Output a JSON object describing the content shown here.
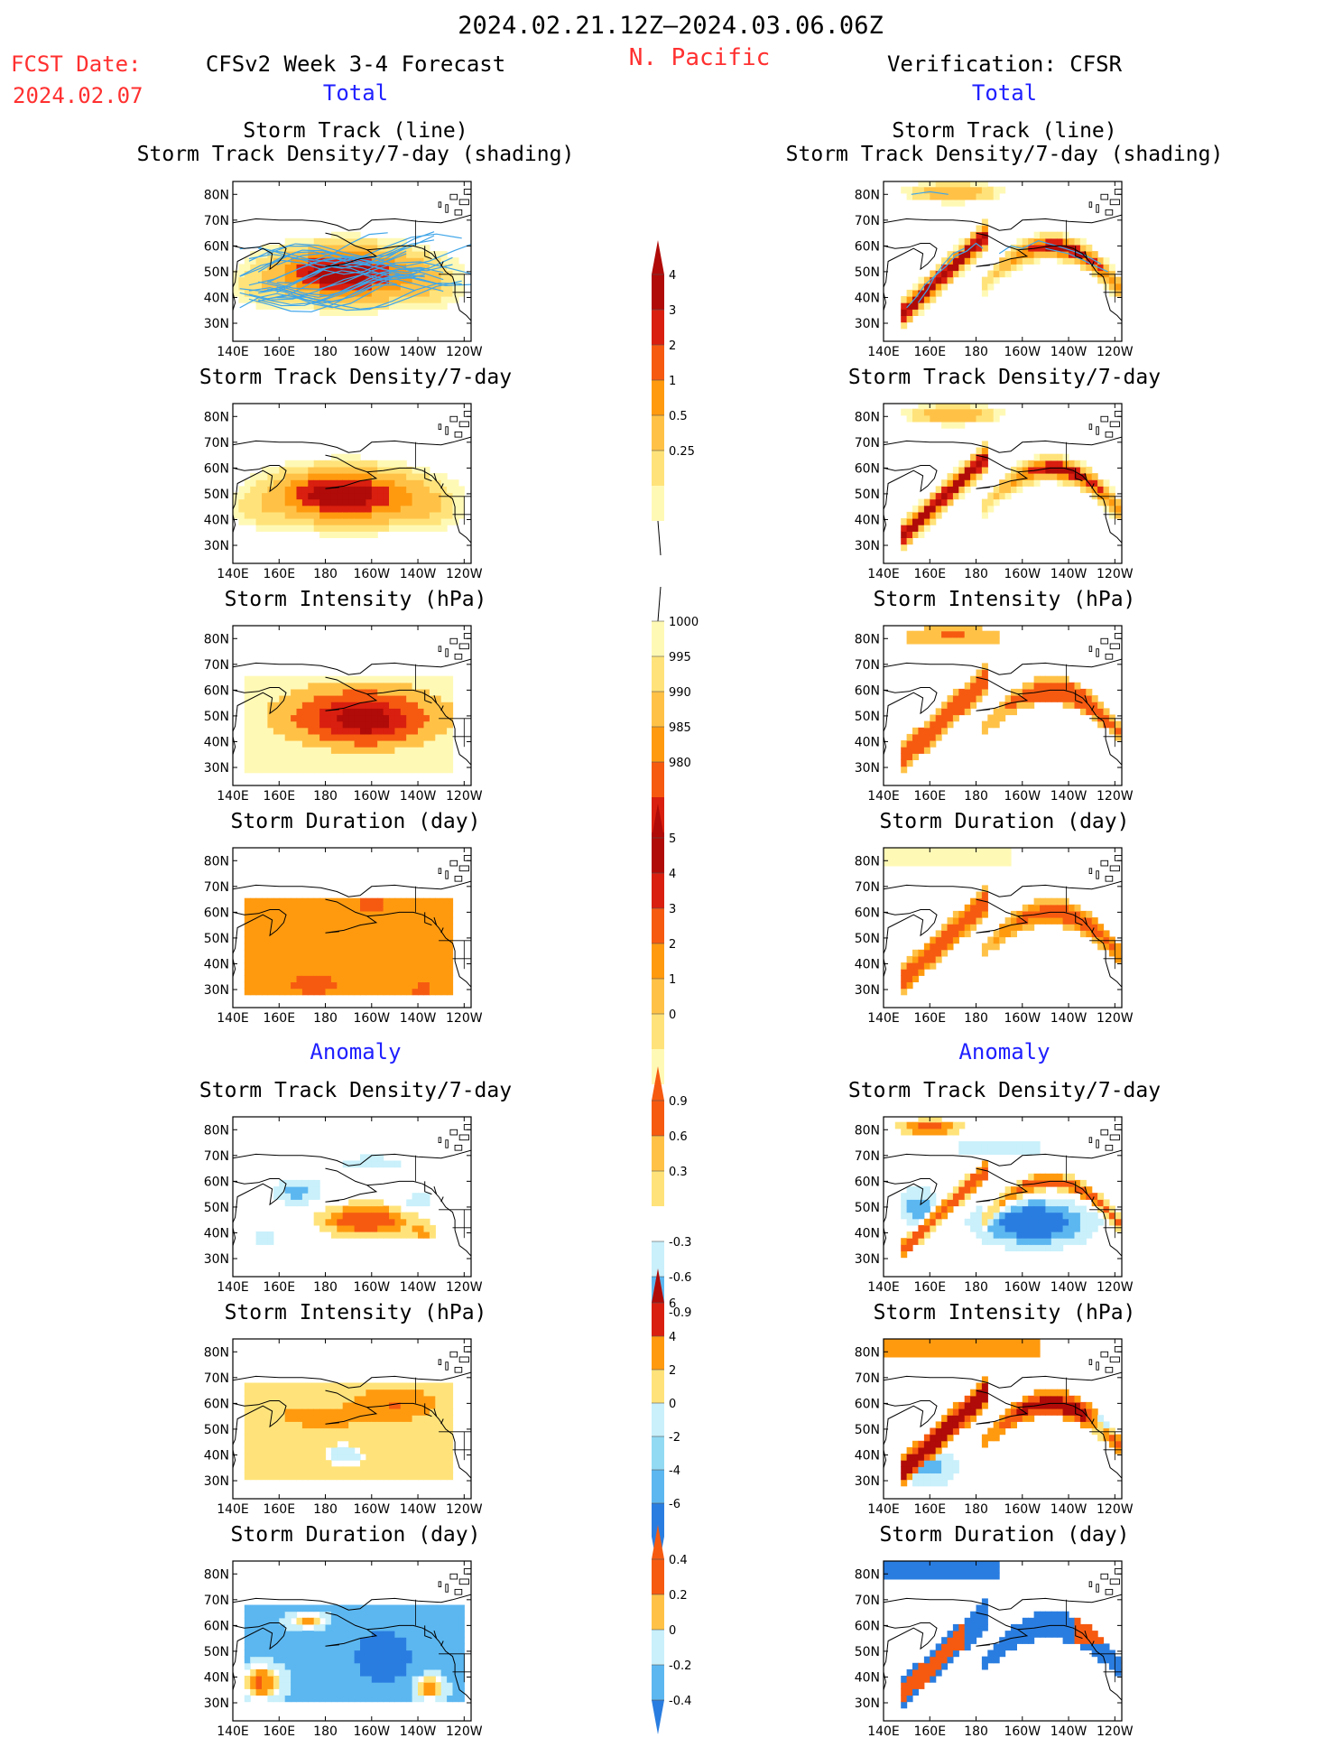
{
  "header": {
    "period": "2024.02.21.12Z–2024.03.06.06Z",
    "region": "N. Pacific",
    "fcst_label": "FCST Date:",
    "fcst_date": "2024.02.07",
    "model_title": "CFSv2 Week 3-4 Forecast",
    "verification_title": "Verification: CFSR",
    "total_label": "Total",
    "anomaly_label": "Anomaly"
  },
  "panel_titles": {
    "storm_track_line": "Storm Track (line)",
    "storm_track_shading": "Storm Track Density/7-day (shading)",
    "density": "Storm Track Density/7-day",
    "intensity": "Storm Intensity (hPa)",
    "duration": "Storm Duration (day)"
  },
  "axes": {
    "lat_labels": [
      "80N",
      "70N",
      "60N",
      "50N",
      "40N",
      "30N"
    ],
    "lon_labels": [
      "140E",
      "160E",
      "180",
      "160W",
      "140W",
      "120W"
    ]
  },
  "colorbars": {
    "density_total": [
      "0.25",
      "0.5",
      "1",
      "2",
      "3",
      "4"
    ],
    "intensity_total": [
      "1000",
      "995",
      "990",
      "985",
      "980"
    ],
    "duration_total": [
      "0",
      "1",
      "2",
      "3",
      "4",
      "5"
    ],
    "density_anomaly": [
      "-0.9",
      "-0.6",
      "-0.3",
      "0.3",
      "0.6",
      "0.9"
    ],
    "intensity_anomaly": [
      "-6",
      "-4",
      "-2",
      "0",
      "2",
      "4",
      "6"
    ],
    "duration_anomaly": [
      "-0.4",
      "-0.2",
      "0",
      "0.2",
      "0.4"
    ]
  },
  "colors": {
    "warm": [
      "#fff9b6",
      "#ffe37a",
      "#ffc247",
      "#ff9a0f",
      "#f65a10",
      "#d91f0f",
      "#b00b08"
    ],
    "cool": [
      "#c9f0fb",
      "#92daf4",
      "#5cb7f0",
      "#2a7de0",
      "#1e5bd0"
    ],
    "track_line": "#3fa5e8",
    "title_red": "#ff3030",
    "title_blue": "#2020ff"
  }
}
